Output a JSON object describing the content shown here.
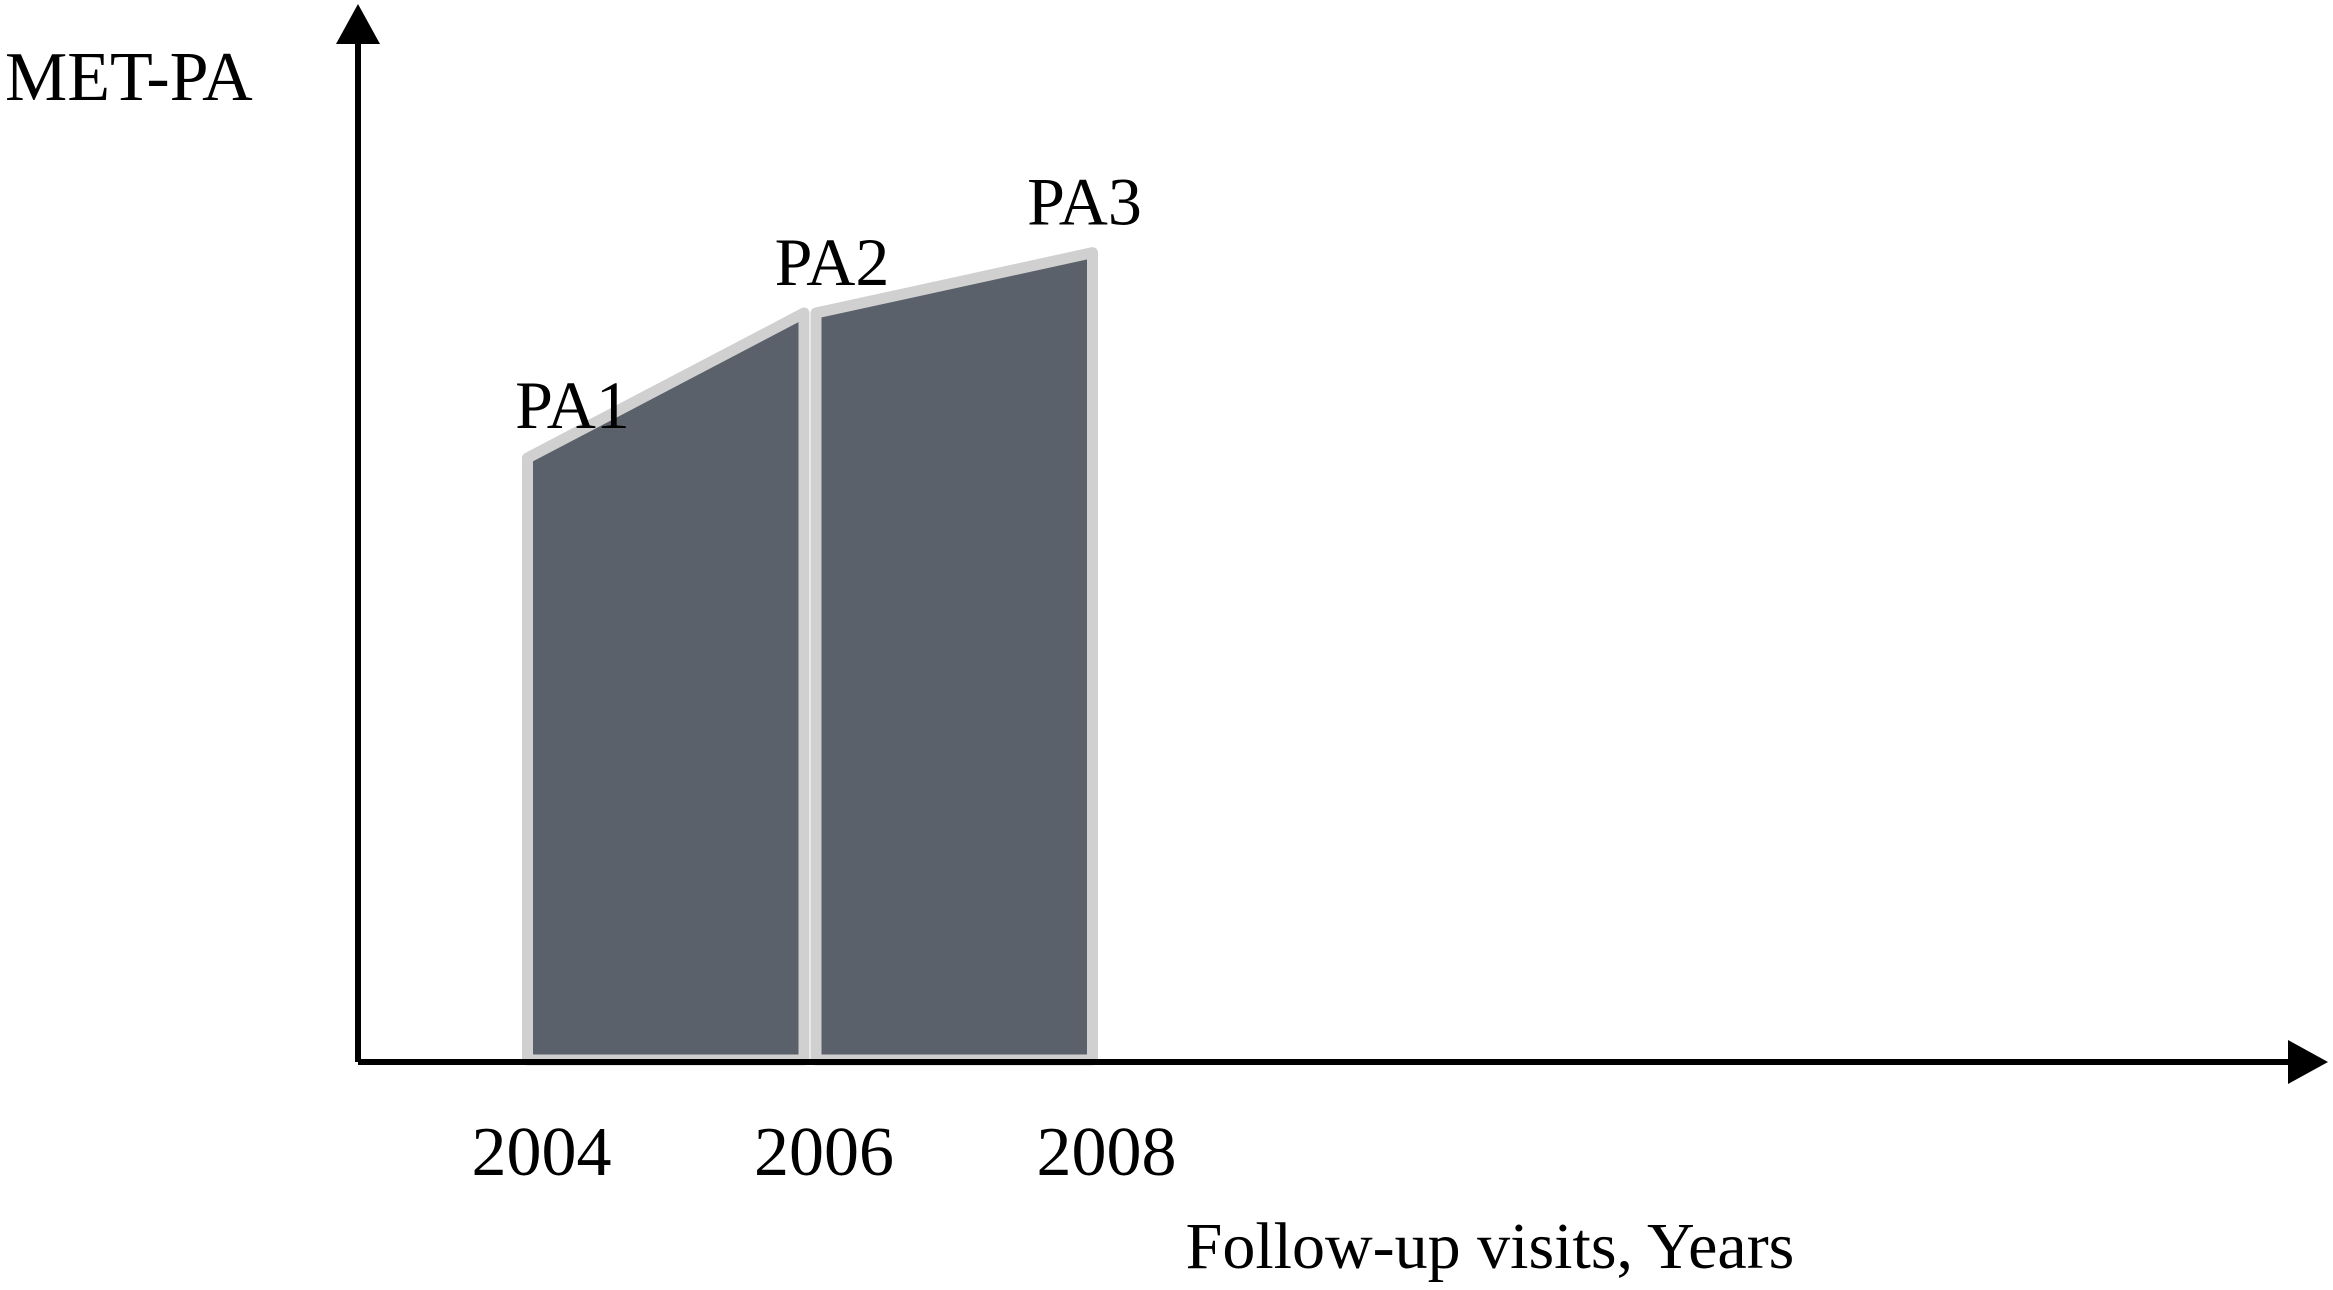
{
  "chart_data": {
    "type": "area",
    "title": "",
    "xlabel": "Follow-up visits, Years",
    "ylabel": "MET-PA",
    "x": [
      2004,
      2006,
      2008
    ],
    "x_tick_labels": [
      "2004",
      "2006",
      "2008"
    ],
    "series": [
      {
        "values": [
          1.0,
          1.24,
          1.34
        ],
        "point_labels": [
          "PA1",
          "PA2",
          "PA3"
        ]
      }
    ],
    "xlim": [
      2002.8,
      2009.4
    ],
    "ylim": [
      0,
      1.7
    ],
    "y_tick_labels_shown": false,
    "grid": false,
    "legend": "none",
    "colors": {
      "fill": "#5a616a",
      "outline": "#d0d0d0",
      "axis": "#000000"
    }
  }
}
